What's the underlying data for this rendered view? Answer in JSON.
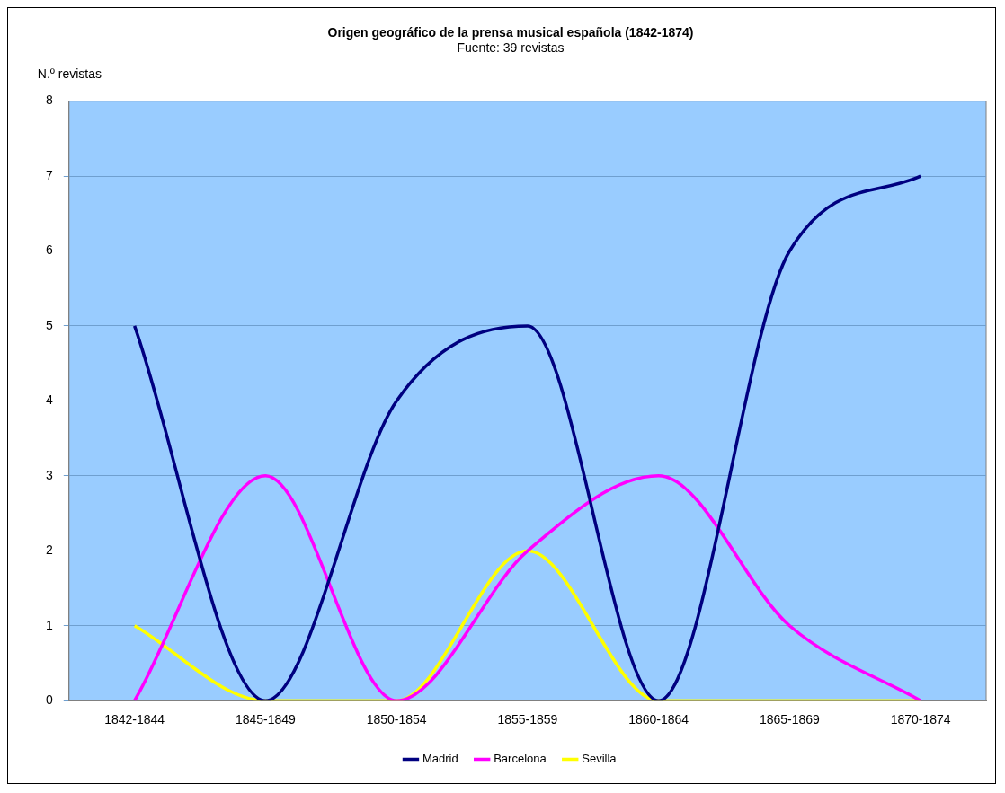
{
  "chart_data": {
    "type": "line",
    "title": "Origen geográfico de la prensa musical española (1842-1874)",
    "subtitle": "Fuente: 39 revistas",
    "ylabel": "N.º revistas",
    "categories": [
      "1842-1844",
      "1845-1849",
      "1850-1854",
      "1855-1859",
      "1860-1864",
      "1865-1869",
      "1870-1874"
    ],
    "series": [
      {
        "name": "Madrid",
        "color": "#000080",
        "values": [
          5,
          0,
          4,
          5,
          0,
          6,
          7
        ]
      },
      {
        "name": "Barcelona",
        "color": "#ff00ff",
        "values": [
          0,
          3,
          0,
          2,
          3,
          1,
          0
        ]
      },
      {
        "name": "Sevilla",
        "color": "#ffff00",
        "values": [
          1,
          0,
          0,
          2,
          0,
          0,
          0
        ]
      }
    ],
    "ylim": [
      0,
      8
    ],
    "yticks": [
      0,
      1,
      2,
      3,
      4,
      5,
      6,
      7,
      8
    ],
    "grid": "y",
    "legend": "bottom",
    "marker": "none",
    "line_style": "solid"
  }
}
